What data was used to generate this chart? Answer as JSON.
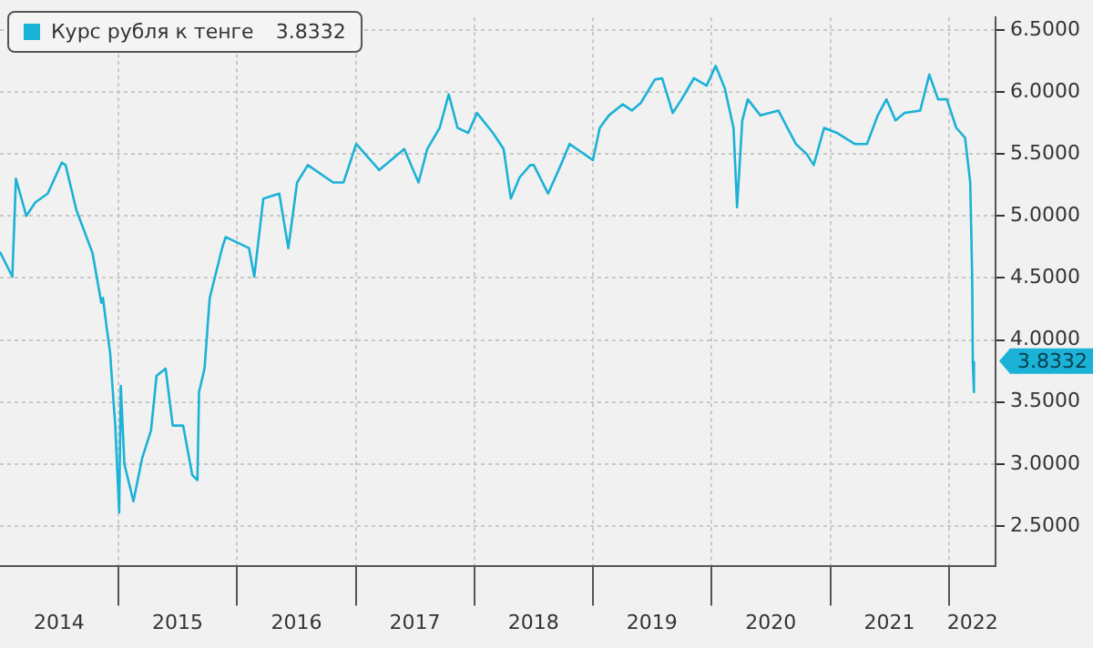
{
  "chart_data": {
    "type": "line",
    "legend": "top left",
    "grid": true,
    "marker": "none",
    "line_style": "solid",
    "xlim": [
      "2014-01-01",
      "2022-05-25"
    ],
    "xticks": [
      {
        "value": "2014-07-02",
        "label": "2014"
      },
      {
        "value": "2015-01-01",
        "label": null
      },
      {
        "value": "2015-07-02",
        "label": "2015"
      },
      {
        "value": "2016-01-01",
        "label": null
      },
      {
        "value": "2016-07-02",
        "label": "2016"
      },
      {
        "value": "2017-01-01",
        "label": null
      },
      {
        "value": "2017-07-02",
        "label": "2017"
      },
      {
        "value": "2018-01-01",
        "label": null
      },
      {
        "value": "2018-07-02",
        "label": "2018"
      },
      {
        "value": "2019-01-01",
        "label": null
      },
      {
        "value": "2019-07-02",
        "label": "2019"
      },
      {
        "value": "2020-01-01",
        "label": null
      },
      {
        "value": "2020-07-02",
        "label": "2020"
      },
      {
        "value": "2021-01-01",
        "label": null
      },
      {
        "value": "2021-07-02",
        "label": "2021"
      },
      {
        "value": "2022-01-01",
        "label": null
      },
      {
        "value": "2022-03-15",
        "label": "2022"
      }
    ],
    "ylim": [
      2.18,
      6.6
    ],
    "yticks": [
      {
        "value": 2.5,
        "label": "2.5000"
      },
      {
        "value": 3,
        "label": "3.0000"
      },
      {
        "value": 3.5,
        "label": "3.5000"
      },
      {
        "value": 4,
        "label": "4.0000"
      },
      {
        "value": 4.5,
        "label": "4.5000"
      },
      {
        "value": 5,
        "label": "5.0000"
      },
      {
        "value": 5.5,
        "label": "5.5000"
      },
      {
        "value": 6,
        "label": "6.0000"
      },
      {
        "value": 6.5,
        "label": "6.5000"
      }
    ],
    "annotations": [
      "3.8332"
    ],
    "series": [
      {
        "name": "Курс рубля к тенге",
        "color": "#1ab2d6",
        "x": [
          "2014-01-01",
          "2014-02-08",
          "2014-02-19",
          "2014-03-23",
          "2014-04-20",
          "2014-05-28",
          "2014-07-10",
          "2014-07-22",
          "2014-08-24",
          "2014-10-13",
          "2014-11-09",
          "2014-11-14",
          "2014-11-25",
          "2014-12-06",
          "2014-12-11",
          "2014-12-22",
          "2015-01-03",
          "2015-01-08",
          "2015-01-19",
          "2015-02-16",
          "2015-03-15",
          "2015-04-11",
          "2015-04-28",
          "2015-05-26",
          "2015-06-17",
          "2015-07-19",
          "2015-08-16",
          "2015-09-01",
          "2015-09-06",
          "2015-09-23",
          "2015-10-04",
          "2015-10-09",
          "2015-11-16",
          "2015-11-27",
          "2016-02-07",
          "2016-02-23",
          "2016-03-22",
          "2016-05-10",
          "2016-06-07",
          "2016-07-04",
          "2016-08-06",
          "2016-10-23",
          "2016-11-24",
          "2017-01-02",
          "2017-03-14",
          "2017-05-30",
          "2017-07-13",
          "2017-08-09",
          "2017-09-16",
          "2017-10-14",
          "2017-11-10",
          "2017-12-13",
          "2018-01-09",
          "2018-02-27",
          "2018-04-01",
          "2018-04-23",
          "2018-05-20",
          "2018-06-22",
          "2018-07-03",
          "2018-08-16",
          "2018-09-24",
          "2018-10-21",
          "2019-01-01",
          "2019-01-22",
          "2019-02-19",
          "2019-04-03",
          "2019-05-01",
          "2019-05-28",
          "2019-07-11",
          "2019-08-02",
          "2019-09-04",
          "2019-10-01",
          "2019-11-08",
          "2019-12-17",
          "2020-01-14",
          "2020-02-11",
          "2020-03-09",
          "2020-03-20",
          "2020-04-05",
          "2020-04-22",
          "2020-05-31",
          "2020-07-25",
          "2020-09-17",
          "2020-10-20",
          "2020-11-11",
          "2020-12-13",
          "2021-01-21",
          "2021-03-17",
          "2021-04-24",
          "2021-05-27",
          "2021-06-23",
          "2021-07-21",
          "2021-08-17",
          "2021-10-05",
          "2021-11-02",
          "2021-11-29",
          "2021-12-26",
          "2022-01-24",
          "2022-02-20",
          "2022-03-08",
          "2022-03-14",
          "2022-03-16",
          "2022-03-18",
          "2022-03-21"
        ],
        "values": [
          4.71,
          4.51,
          5.3,
          5.0,
          5.11,
          5.18,
          5.43,
          5.41,
          5.05,
          4.7,
          4.3,
          4.34,
          4.11,
          3.9,
          3.71,
          3.31,
          2.61,
          3.63,
          3.0,
          2.7,
          3.05,
          3.27,
          3.71,
          3.77,
          3.31,
          3.31,
          2.91,
          2.87,
          3.58,
          3.77,
          4.17,
          4.34,
          4.74,
          4.83,
          4.74,
          4.51,
          5.14,
          5.18,
          4.74,
          5.27,
          5.41,
          5.27,
          5.27,
          5.58,
          5.37,
          5.54,
          5.27,
          5.54,
          5.71,
          5.98,
          5.71,
          5.67,
          5.83,
          5.67,
          5.54,
          5.14,
          5.31,
          5.41,
          5.41,
          5.18,
          5.41,
          5.58,
          5.45,
          5.71,
          5.81,
          5.9,
          5.85,
          5.91,
          6.1,
          6.11,
          5.83,
          5.94,
          6.11,
          6.05,
          6.21,
          6.03,
          5.71,
          5.07,
          5.77,
          5.94,
          5.81,
          5.85,
          5.58,
          5.5,
          5.41,
          5.71,
          5.67,
          5.58,
          5.58,
          5.81,
          5.94,
          5.77,
          5.83,
          5.85,
          6.14,
          5.94,
          5.94,
          5.71,
          5.63,
          5.27,
          4.51,
          3.81,
          3.58,
          3.83
        ]
      }
    ]
  }
}
